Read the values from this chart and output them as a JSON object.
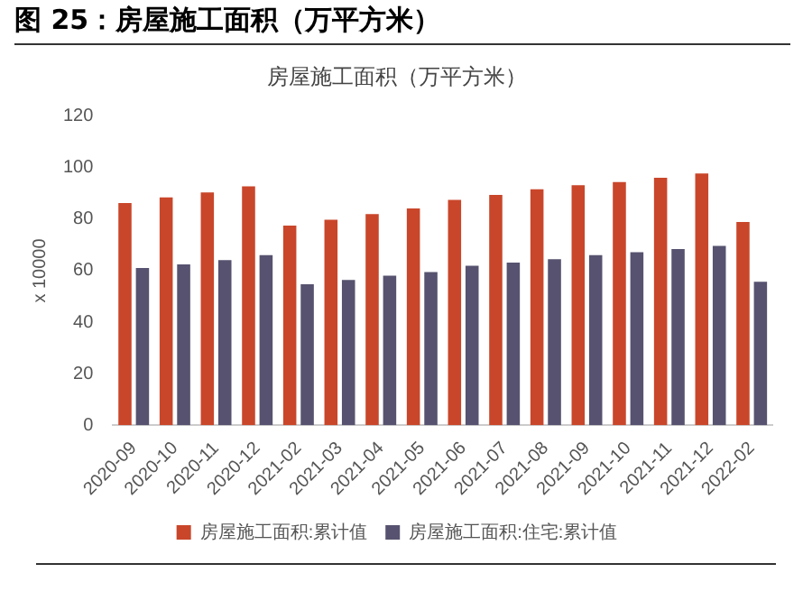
{
  "chart_data": {
    "type": "bar",
    "title": "图 25：房屋施工面积（万平方米）",
    "subtitle": "房屋施工面积（万平方米）",
    "ylabel": "x 10000",
    "categories": [
      "2020-09",
      "2020-10",
      "2020-11",
      "2020-12",
      "2021-02",
      "2021-03",
      "2021-04",
      "2021-05",
      "2021-06",
      "2021-07",
      "2021-08",
      "2021-09",
      "2021-10",
      "2021-11",
      "2021-12",
      "2022-02"
    ],
    "series": [
      {
        "name": "房屋施工面积:累计值",
        "color": "#c9462a",
        "values": [
          86.3,
          88.5,
          90.4,
          92.8,
          77.5,
          79.8,
          82.0,
          84.2,
          87.5,
          89.4,
          91.6,
          93.2,
          94.4,
          96.1,
          97.8,
          78.9
        ]
      },
      {
        "name": "房屋施工面积:住宅:累计值",
        "color": "#56526f",
        "values": [
          61.0,
          62.4,
          64.1,
          66.0,
          54.7,
          56.4,
          58.1,
          59.5,
          61.9,
          63.1,
          64.5,
          66.0,
          67.2,
          68.4,
          69.6,
          55.7
        ]
      }
    ],
    "ylim": [
      0,
      120
    ],
    "yticks": [
      0,
      20,
      40,
      60,
      80,
      100,
      120
    ],
    "grid": false,
    "legend": "bottom"
  }
}
